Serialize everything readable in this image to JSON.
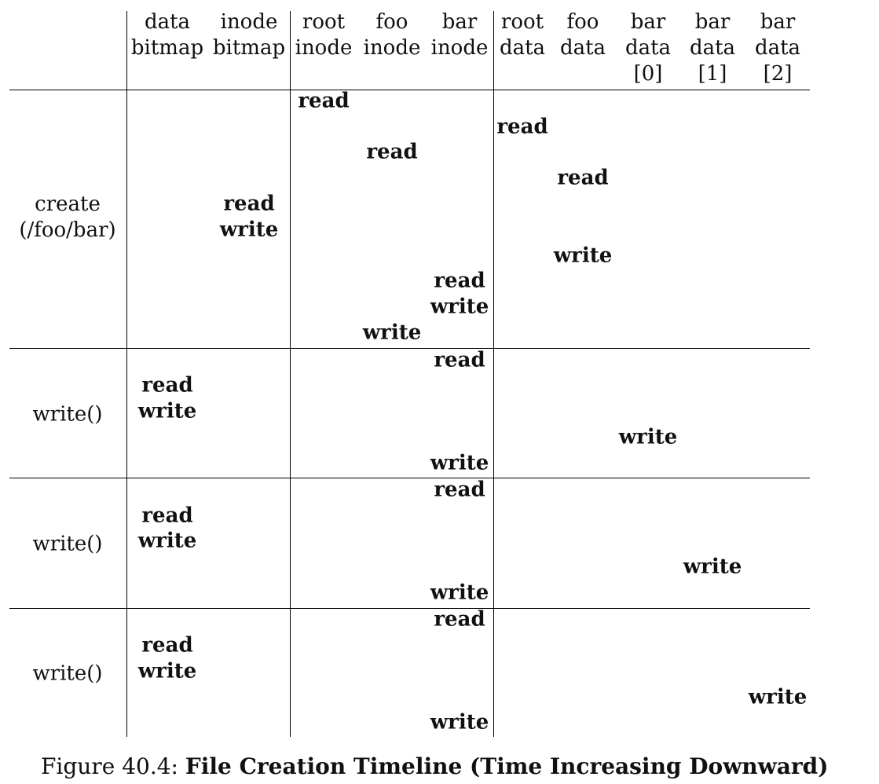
{
  "headers": [
    {
      "id": "data-bitmap",
      "lines": [
        "data",
        "bitmap"
      ]
    },
    {
      "id": "inode-bitmap",
      "lines": [
        "inode",
        "bitmap"
      ]
    },
    {
      "id": "root-inode",
      "lines": [
        "root",
        "inode"
      ]
    },
    {
      "id": "foo-inode",
      "lines": [
        "foo",
        "inode"
      ]
    },
    {
      "id": "bar-inode",
      "lines": [
        "bar",
        "inode"
      ]
    },
    {
      "id": "root-data",
      "lines": [
        "root",
        "data"
      ]
    },
    {
      "id": "foo-data",
      "lines": [
        "foo",
        "data"
      ]
    },
    {
      "id": "bar-data-0",
      "lines": [
        "bar",
        "data",
        "[0]"
      ]
    },
    {
      "id": "bar-data-1",
      "lines": [
        "bar",
        "data",
        "[1]"
      ]
    },
    {
      "id": "bar-data-2",
      "lines": [
        "bar",
        "data",
        "[2]"
      ]
    }
  ],
  "sections": [
    {
      "label": [
        "create",
        "(/foo/bar)"
      ],
      "ops": [
        {
          "col": "root-inode",
          "text": "read"
        },
        {
          "col": "root-data",
          "text": "read"
        },
        {
          "col": "foo-inode",
          "text": "read"
        },
        {
          "col": "foo-data",
          "text": "read"
        },
        {
          "col": "inode-bitmap",
          "text": "read"
        },
        {
          "col": "inode-bitmap",
          "text": "write"
        },
        {
          "col": "foo-data",
          "text": "write"
        },
        {
          "col": "bar-inode",
          "text": "read"
        },
        {
          "col": "bar-inode",
          "text": "write"
        },
        {
          "col": "foo-inode",
          "text": "write"
        }
      ]
    },
    {
      "label": [
        "write()"
      ],
      "ops": [
        {
          "col": "bar-inode",
          "text": "read"
        },
        {
          "col": "data-bitmap",
          "text": "read"
        },
        {
          "col": "data-bitmap",
          "text": "write"
        },
        {
          "col": "bar-data-0",
          "text": "write"
        },
        {
          "col": "bar-inode",
          "text": "write"
        }
      ]
    },
    {
      "label": [
        "write()"
      ],
      "ops": [
        {
          "col": "bar-inode",
          "text": "read"
        },
        {
          "col": "data-bitmap",
          "text": "read"
        },
        {
          "col": "data-bitmap",
          "text": "write"
        },
        {
          "col": "bar-data-1",
          "text": "write"
        },
        {
          "col": "bar-inode",
          "text": "write"
        }
      ]
    },
    {
      "label": [
        "write()"
      ],
      "ops": [
        {
          "col": "bar-inode",
          "text": "read"
        },
        {
          "col": "data-bitmap",
          "text": "read"
        },
        {
          "col": "data-bitmap",
          "text": "write"
        },
        {
          "col": "bar-data-2",
          "text": "write"
        },
        {
          "col": "bar-inode",
          "text": "write"
        }
      ]
    }
  ],
  "caption": {
    "prefix": "Figure 40.4: ",
    "title": "File Creation Timeline (Time Increasing Downward)"
  }
}
